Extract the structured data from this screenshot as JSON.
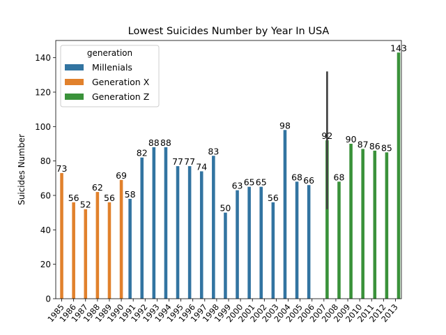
{
  "chart_data": {
    "type": "bar",
    "title": "Lowest Suicides Number by Year In USA",
    "xlabel": "",
    "ylabel": "Suicides Number",
    "ylim": [
      0,
      150
    ],
    "yticks": [
      0,
      20,
      40,
      60,
      80,
      100,
      120,
      140
    ],
    "categories": [
      "1985",
      "1986",
      "1987",
      "1988",
      "1989",
      "1990",
      "1991",
      "1992",
      "1993",
      "1994",
      "1995",
      "1996",
      "1997",
      "1998",
      "1999",
      "2000",
      "2001",
      "2002",
      "2003",
      "2004",
      "2005",
      "2006",
      "2007",
      "2008",
      "2009",
      "2010",
      "2011",
      "2012",
      "2013"
    ],
    "legend": {
      "title": "generation",
      "placement": "top-left"
    },
    "series": [
      {
        "name": "Millenials",
        "color": "#3274a1",
        "values": [
          null,
          null,
          null,
          null,
          null,
          null,
          58,
          82,
          88,
          88,
          77,
          77,
          74,
          83,
          50,
          63,
          65,
          65,
          56,
          98,
          68,
          66,
          null,
          null,
          null,
          null,
          null,
          null,
          null
        ]
      },
      {
        "name": "Generation X",
        "color": "#e1812c",
        "values": [
          73,
          56,
          52,
          62,
          56,
          69,
          null,
          null,
          null,
          null,
          null,
          null,
          null,
          null,
          null,
          null,
          null,
          null,
          null,
          null,
          null,
          null,
          null,
          null,
          null,
          null,
          null,
          null,
          null
        ]
      },
      {
        "name": "Generation Z",
        "color": "#3a923a",
        "values": [
          null,
          null,
          null,
          null,
          null,
          null,
          null,
          null,
          null,
          null,
          null,
          null,
          null,
          null,
          null,
          null,
          null,
          null,
          null,
          null,
          null,
          null,
          92,
          68,
          90,
          87,
          86,
          85,
          143
        ]
      }
    ],
    "error_bars": [
      {
        "category": "2007",
        "series": "Generation Z",
        "low": 52,
        "high": 132
      }
    ]
  }
}
